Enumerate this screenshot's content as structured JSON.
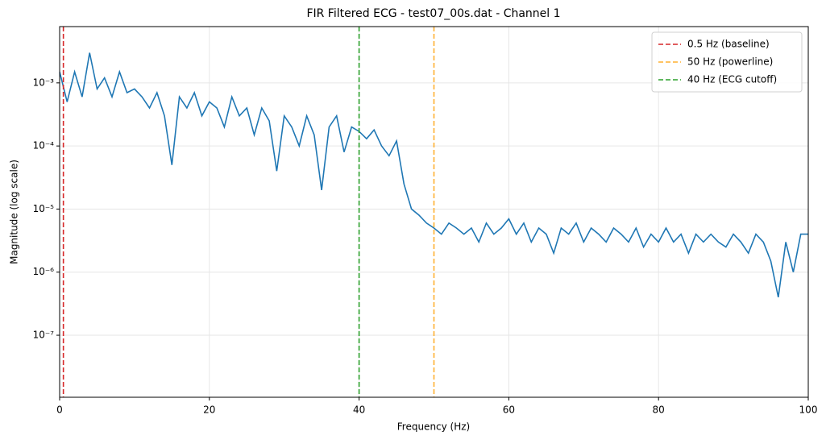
{
  "chart_data": {
    "type": "line",
    "title": "FIR Filtered ECG - test07_00s.dat - Channel 1",
    "xlabel": "Frequency (Hz)",
    "ylabel": "Magnitude (log scale)",
    "xlim": [
      0,
      100
    ],
    "xticks": [
      0,
      20,
      40,
      60,
      80,
      100
    ],
    "ylim": [
      1.04e-08,
      0.0078
    ],
    "ylog": true,
    "yticks": [
      {
        "value": 1e-07,
        "label": "10⁻⁷"
      },
      {
        "value": 1e-06,
        "label": "10⁻⁶"
      },
      {
        "value": 1e-05,
        "label": "10⁻⁵"
      },
      {
        "value": 0.0001,
        "label": "10⁻⁴"
      },
      {
        "value": 0.001,
        "label": "10⁻³"
      }
    ],
    "grid": true,
    "legend": "upper right",
    "x": [
      0,
      1,
      2,
      3,
      4,
      5,
      6,
      7,
      8,
      9,
      10,
      11,
      12,
      13,
      14,
      15,
      16,
      17,
      18,
      19,
      20,
      21,
      22,
      23,
      24,
      25,
      26,
      27,
      28,
      29,
      30,
      31,
      32,
      33,
      34,
      35,
      36,
      37,
      38,
      39,
      40,
      41,
      42,
      43,
      44,
      45,
      46,
      47,
      48,
      49,
      50,
      51,
      52,
      53,
      54,
      55,
      56,
      57,
      58,
      59,
      60,
      61,
      62,
      63,
      64,
      65,
      66,
      67,
      68,
      69,
      70,
      71,
      72,
      73,
      74,
      75,
      76,
      77,
      78,
      79,
      80,
      81,
      82,
      83,
      84,
      85,
      86,
      87,
      88,
      89,
      90,
      91,
      92,
      93,
      94,
      95,
      96,
      97,
      98,
      99,
      100
    ],
    "series": [
      {
        "color": "#1f77b4",
        "values": [
          0.0015,
          0.0005,
          0.0015,
          0.0006,
          0.003,
          0.0008,
          0.0012,
          0.0006,
          0.0015,
          0.0007,
          0.0008,
          0.0006,
          0.0004,
          0.0007,
          0.0003,
          5e-05,
          0.0006,
          0.0004,
          0.0007,
          0.0003,
          0.0005,
          0.0004,
          0.0002,
          0.0006,
          0.0003,
          0.0004,
          0.00015,
          0.0004,
          0.00025,
          4e-05,
          0.0003,
          0.0002,
          0.0001,
          0.0003,
          0.00015,
          2e-05,
          0.0002,
          0.0003,
          8e-05,
          0.0002,
          0.00017,
          0.00013,
          0.00018,
          0.0001,
          7e-05,
          0.00012,
          2.5e-05,
          1e-05,
          8e-06,
          6e-06,
          5e-06,
          4e-06,
          6e-06,
          5e-06,
          4e-06,
          5e-06,
          3e-06,
          6e-06,
          4e-06,
          5e-06,
          7e-06,
          4e-06,
          6e-06,
          3e-06,
          5e-06,
          4e-06,
          2e-06,
          5e-06,
          4e-06,
          6e-06,
          3e-06,
          5e-06,
          4e-06,
          3e-06,
          5e-06,
          4e-06,
          3e-06,
          5e-06,
          2.5e-06,
          4e-06,
          3e-06,
          5e-06,
          3e-06,
          4e-06,
          2e-06,
          4e-06,
          3e-06,
          4e-06,
          3e-06,
          2.5e-06,
          4e-06,
          3e-06,
          2e-06,
          4e-06,
          3e-06,
          1.5e-06,
          4e-07,
          3e-06,
          1e-06,
          4e-06,
          4e-06
        ]
      }
    ],
    "vlines": [
      {
        "x": 0.5,
        "name": "0.5 Hz (baseline)",
        "color": "#d62728"
      },
      {
        "x": 50,
        "name": "50 Hz (powerline)",
        "color": "#ffb030"
      },
      {
        "x": 40,
        "name": "40 Hz (ECG cutoff)",
        "color": "#2ca02c"
      }
    ]
  }
}
